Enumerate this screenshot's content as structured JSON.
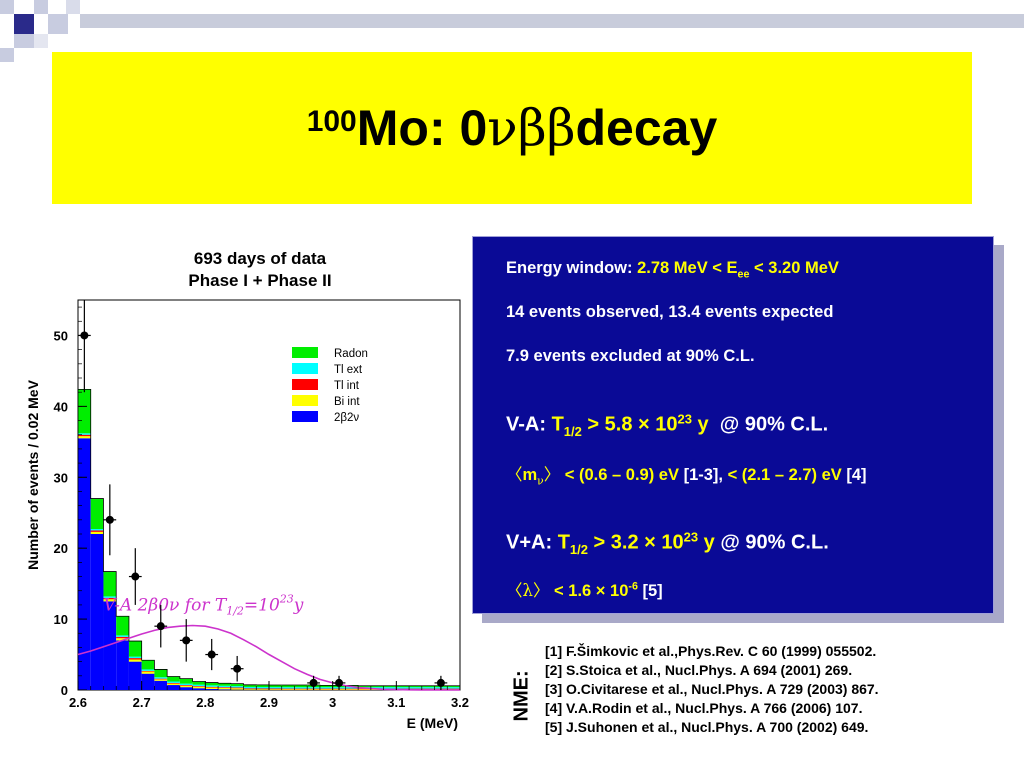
{
  "title": {
    "superscript": "100",
    "main": "Mo: 0",
    "greek": "νββ",
    "tail": " decay"
  },
  "plot_caption": {
    "line1": "693 days of data",
    "line2": "Phase I + Phase II"
  },
  "chart_data": {
    "type": "bar",
    "xlabel": "E (MeV)",
    "ylabel": "Number of events / 0.02 MeV",
    "xlim": [
      2.6,
      3.2
    ],
    "ylim": [
      0,
      55
    ],
    "x_ticks": [
      2.6,
      2.7,
      2.8,
      2.9,
      3,
      3.1,
      3.2
    ],
    "x_tick_labels": [
      "2.6",
      "2.7",
      "2.8",
      "2.9",
      "3",
      "3.1",
      "3.2"
    ],
    "y_ticks": [
      0,
      10,
      20,
      30,
      40,
      50
    ],
    "bin_edges": [
      2.6,
      2.62,
      2.64,
      2.66,
      2.68,
      2.7,
      2.72,
      2.74,
      2.76,
      2.78,
      2.8,
      2.82,
      2.84,
      2.86,
      2.88,
      2.9,
      2.92,
      2.94,
      2.96,
      2.98,
      3.0,
      3.02,
      3.04,
      3.06,
      3.08,
      3.1,
      3.12,
      3.14,
      3.16,
      3.18,
      3.2
    ],
    "series": [
      {
        "name": "2β2ν",
        "color": "#0000ff",
        "values": [
          35.5,
          22,
          12.5,
          7,
          4,
          2.3,
          1.3,
          0.7,
          0.4,
          0.25,
          0.15,
          0.1,
          0.05,
          0.03,
          0.02,
          0.01,
          0,
          0,
          0,
          0,
          0,
          0,
          0,
          0,
          0,
          0,
          0,
          0,
          0,
          0
        ]
      },
      {
        "name": "Bi int",
        "color": "#ffff00",
        "values": [
          0.3,
          0.3,
          0.3,
          0.3,
          0.3,
          0.3,
          0.2,
          0.2,
          0.2,
          0.2,
          0.2,
          0.2,
          0.2,
          0.1,
          0.1,
          0.1,
          0.1,
          0.1,
          0.1,
          0.1,
          0.1,
          0.1,
          0.1,
          0.1,
          0.1,
          0.1,
          0.1,
          0.1,
          0.1,
          0.1
        ]
      },
      {
        "name": "Tl int",
        "color": "#ff0000",
        "values": [
          0.2,
          0.2,
          0.2,
          0.2,
          0.2,
          0.1,
          0.1,
          0.1,
          0.1,
          0.1,
          0.1,
          0.1,
          0.1,
          0.1,
          0.1,
          0.1,
          0.1,
          0.1,
          0.1,
          0.1,
          0.1,
          0.1,
          0.1,
          0.1,
          0.1,
          0.1,
          0.1,
          0.1,
          0.1,
          0.1
        ]
      },
      {
        "name": "Tl ext",
        "color": "#00ffff",
        "values": [
          0.2,
          0.2,
          0.2,
          0.2,
          0.2,
          0.2,
          0.2,
          0.2,
          0.2,
          0.2,
          0.2,
          0.2,
          0.2,
          0.2,
          0.2,
          0.2,
          0.2,
          0.2,
          0.2,
          0.2,
          0.2,
          0.2,
          0.2,
          0.2,
          0.2,
          0.2,
          0.2,
          0.2,
          0.2,
          0.2
        ]
      },
      {
        "name": "Radon",
        "color": "#00ee00",
        "values": [
          6.2,
          4.3,
          3.5,
          2.7,
          2.2,
          1.3,
          1.1,
          0.7,
          0.7,
          0.45,
          0.4,
          0.35,
          0.35,
          0.3,
          0.3,
          0.3,
          0.3,
          0.3,
          0.3,
          0.25,
          0.25,
          0.25,
          0.2,
          0.2,
          0.2,
          0.2,
          0.2,
          0.2,
          0.2,
          0.2
        ]
      }
    ],
    "data_points": [
      {
        "x": 2.61,
        "y": 50,
        "err": 8
      },
      {
        "x": 2.65,
        "y": 24,
        "err": 5
      },
      {
        "x": 2.69,
        "y": 16,
        "err": 4
      },
      {
        "x": 2.73,
        "y": 9,
        "err": 3
      },
      {
        "x": 2.77,
        "y": 7,
        "err": 3
      },
      {
        "x": 2.81,
        "y": 5,
        "err": 2.2
      },
      {
        "x": 2.85,
        "y": 3,
        "err": 1.8
      },
      {
        "x": 2.97,
        "y": 1,
        "err": 1
      },
      {
        "x": 3.01,
        "y": 1,
        "err": 1
      },
      {
        "x": 3.17,
        "y": 1,
        "err": 1
      }
    ],
    "signal_curve": {
      "label": "V-A 2β0ν for T1/2=10^23 y",
      "label_parts": {
        "main": "V-A 2β0ν for T",
        "sub": "1/2",
        "eq": "=10",
        "sup": "23",
        "unit": "y"
      },
      "color": "#cc33cc",
      "x": [
        2.6,
        2.62,
        2.64,
        2.66,
        2.68,
        2.7,
        2.72,
        2.74,
        2.76,
        2.78,
        2.8,
        2.82,
        2.84,
        2.86,
        2.88,
        2.9,
        2.92,
        2.94,
        2.96,
        2.98,
        3.0,
        3.02,
        3.04,
        3.06,
        3.08,
        3.1,
        3.12,
        3.14,
        3.16,
        3.18,
        3.2
      ],
      "y": [
        5,
        5.5,
        6.1,
        6.7,
        7.3,
        7.9,
        8.4,
        8.8,
        9.0,
        9.1,
        9.0,
        8.6,
        8.0,
        7.1,
        6.1,
        5.0,
        4.0,
        3.0,
        2.2,
        1.5,
        1.0,
        0.6,
        0.35,
        0.2,
        0.1,
        0.06,
        0.03,
        0.02,
        0.01,
        0.0,
        0.0
      ]
    },
    "legend_position": "top-right"
  },
  "info_box": {
    "energy_label": "Energy window: ",
    "energy_value_a": "2.78 MeV < E",
    "energy_sub": "ee",
    "energy_value_b": " < 3.20 MeV",
    "events": "14 events observed, 13.4 events expected",
    "excluded": "7.9 events excluded at 90% C.L.",
    "va_label": "V-A: ",
    "va_t": "T",
    "va_t_sub": "1/2",
    "va_val": " > 5.8 × 10",
    "va_sup": "23",
    "va_unit": " y",
    "va_cl": "  @ 90% C.L.",
    "mnu_open": "〈",
    "mnu_m": "m",
    "mnu_sub": "ν",
    "mnu_close": "〉",
    "mnu_range1": " < (0.6 – 0.9) eV",
    "mnu_ref1": " [1-3], ",
    "mnu_range2": "< (2.1 – 2.7) eV",
    "mnu_ref2": " [4]",
    "vpa_label": "V+A: ",
    "vpa_t": "T",
    "vpa_t_sub": "1/2",
    "vpa_val": " > 3.2 × 10",
    "vpa_sup": "23",
    "vpa_unit": " y",
    "vpa_cl": " @ 90% C.L.",
    "lam_open": "〈",
    "lam": "λ",
    "lam_close": "〉",
    "lam_val": " < 1.6 × 10",
    "lam_sup": "-6",
    "lam_ref": " [5]"
  },
  "nme_label": "NME:",
  "references": [
    "[1] F.Šimkovic et al.,Phys.Rev. C 60 (1999) 055502.",
    "[2] S.Stoica et al., Nucl.Phys. A 694 (2001) 269.",
    "[3] O.Civitarese et al., Nucl.Phys. A 729 (2003) 867.",
    "[4] V.A.Rodin et al., Nucl.Phys. A 766 (2006) 107.",
    "[5] J.Suhonen et al., Nucl.Phys. A 700 (2002) 649."
  ],
  "colors": {
    "title_bg": "#ffff00",
    "box_bg": "#0a0a96",
    "highlight": "#ffff00",
    "deco_square": "#2a2a8a",
    "deco_light": "#b8bccf"
  }
}
